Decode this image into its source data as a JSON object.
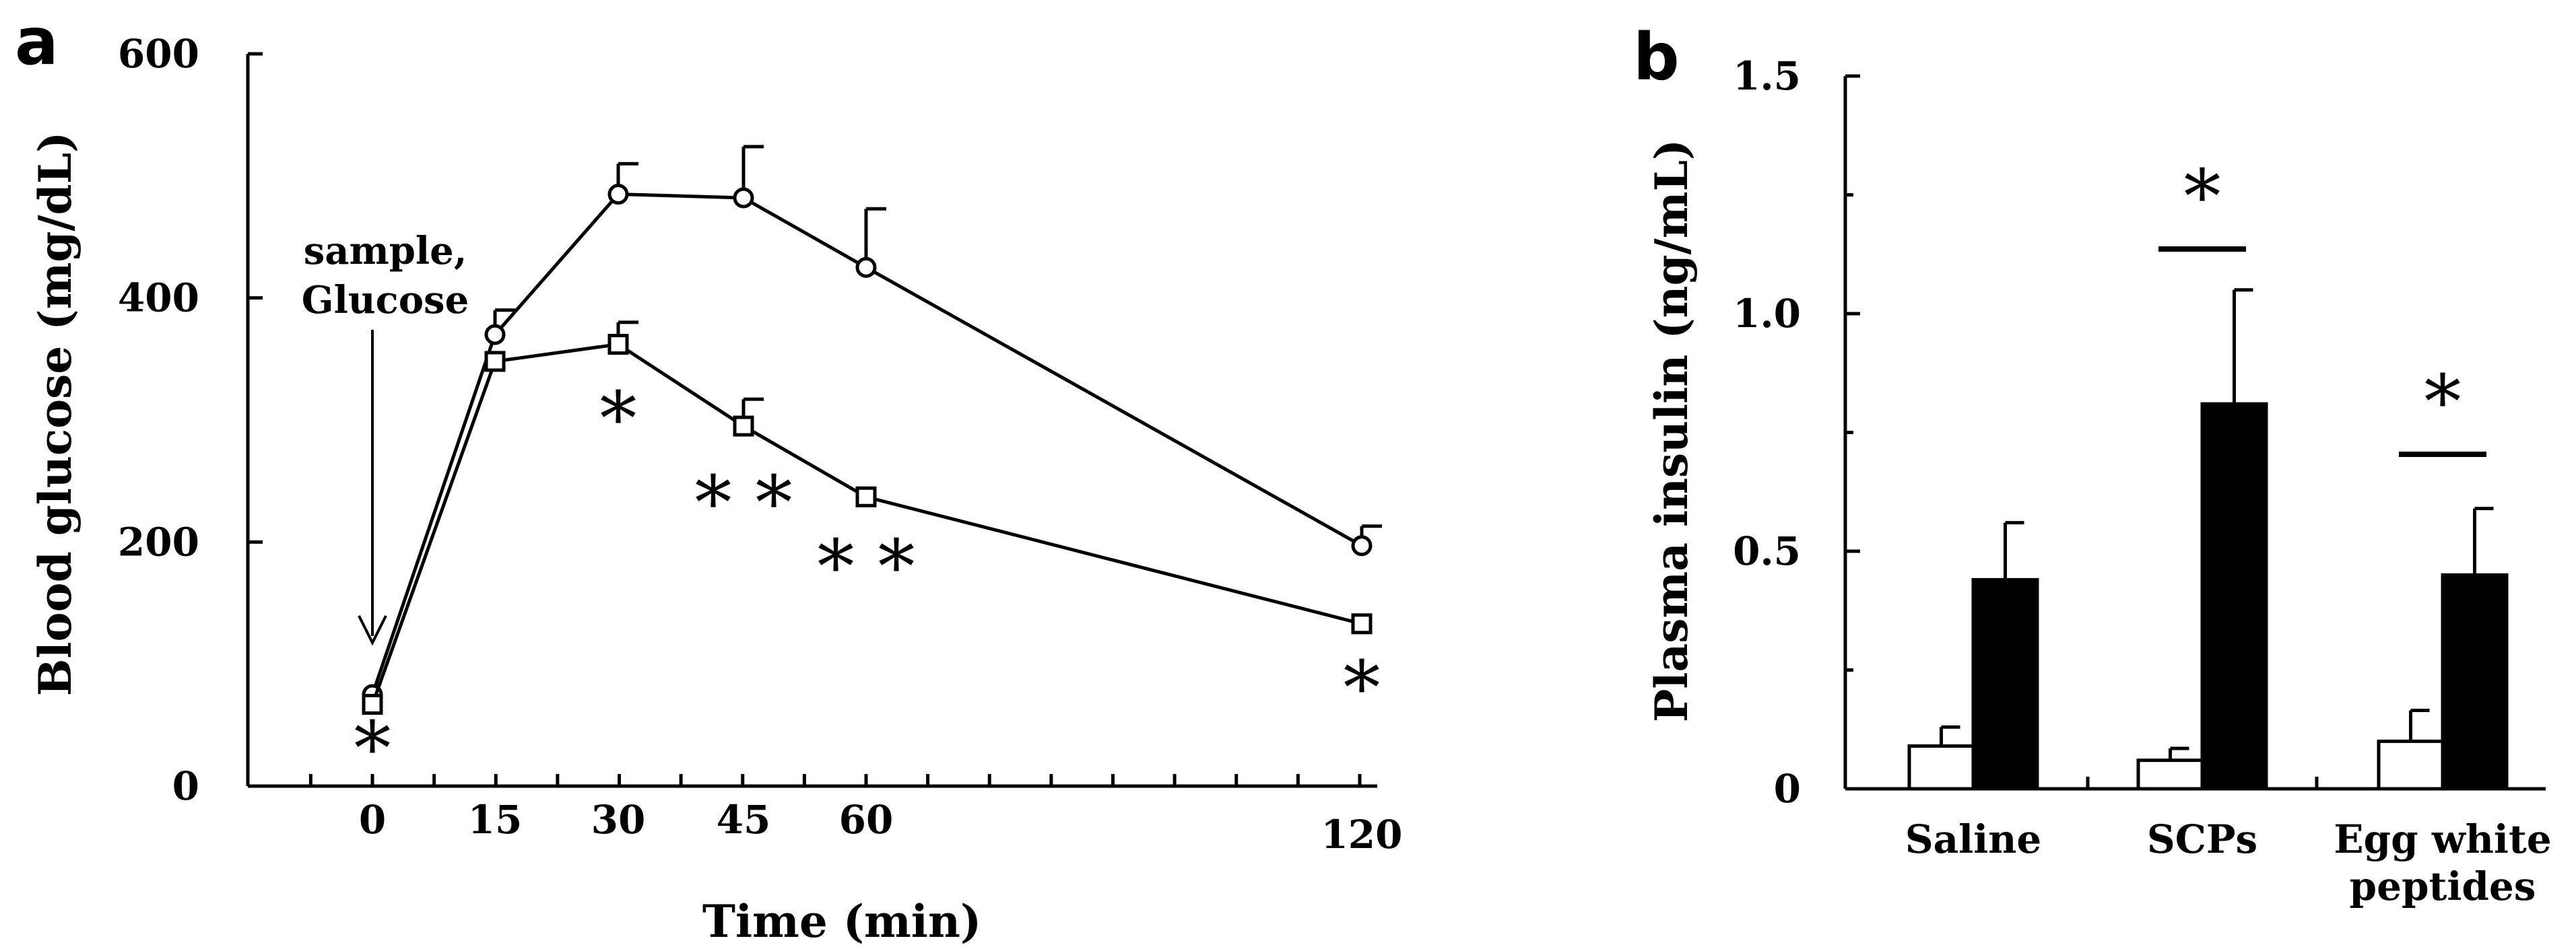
{
  "panels": {
    "a": "a",
    "b": "b"
  },
  "chart_data": [
    {
      "type": "line",
      "panel": "a",
      "xlabel": "Time (min)",
      "ylabel": "Blood glucose (mg/dL)",
      "x": [
        0,
        15,
        30,
        45,
        60,
        120
      ],
      "xticks": [
        "0",
        "15",
        "30",
        "45",
        "60",
        "120"
      ],
      "yticks": [
        "0",
        "200",
        "400",
        "600"
      ],
      "ylim": [
        0,
        600
      ],
      "series": [
        {
          "name": "circle",
          "marker": "circle",
          "values": [
            75,
            370,
            485,
            482,
            425,
            197
          ],
          "errors": [
            0,
            20,
            25,
            42,
            48,
            16
          ]
        },
        {
          "name": "square",
          "marker": "square",
          "values": [
            67,
            348,
            362,
            295,
            237,
            133
          ],
          "errors": [
            0,
            0,
            18,
            22,
            0,
            0
          ]
        }
      ],
      "significance": [
        {
          "x": 0,
          "label": "*"
        },
        {
          "x": 30,
          "label": "*"
        },
        {
          "x": 45,
          "label": "* *"
        },
        {
          "x": 60,
          "label": "* *"
        },
        {
          "x": 120,
          "label": "*"
        }
      ],
      "annotation": {
        "line1": "sample,",
        "line2": "Glucose"
      }
    },
    {
      "type": "bar",
      "panel": "b",
      "ylabel": "Plasma insulin (ng/mL)",
      "categories": [
        "Saline",
        "SCPs",
        "Egg white peptides"
      ],
      "category_lines": [
        [
          "Saline"
        ],
        [
          "SCPs"
        ],
        [
          "Egg white",
          "peptides"
        ]
      ],
      "yticks": [
        "0",
        "0.5",
        "1.0",
        "1.5"
      ],
      "ylim": [
        0,
        1.5
      ],
      "series": [
        {
          "name": "open",
          "color": "#ffffff",
          "values": [
            0.09,
            0.06,
            0.1
          ],
          "errors": [
            0.04,
            0.025,
            0.065
          ]
        },
        {
          "name": "filled",
          "color": "#000000",
          "values": [
            0.44,
            0.81,
            0.45
          ],
          "errors": [
            0.12,
            0.24,
            0.14
          ]
        }
      ],
      "significance": [
        {
          "category": "SCPs",
          "label": "*"
        },
        {
          "category": "Egg white peptides",
          "label": "*"
        }
      ]
    }
  ]
}
